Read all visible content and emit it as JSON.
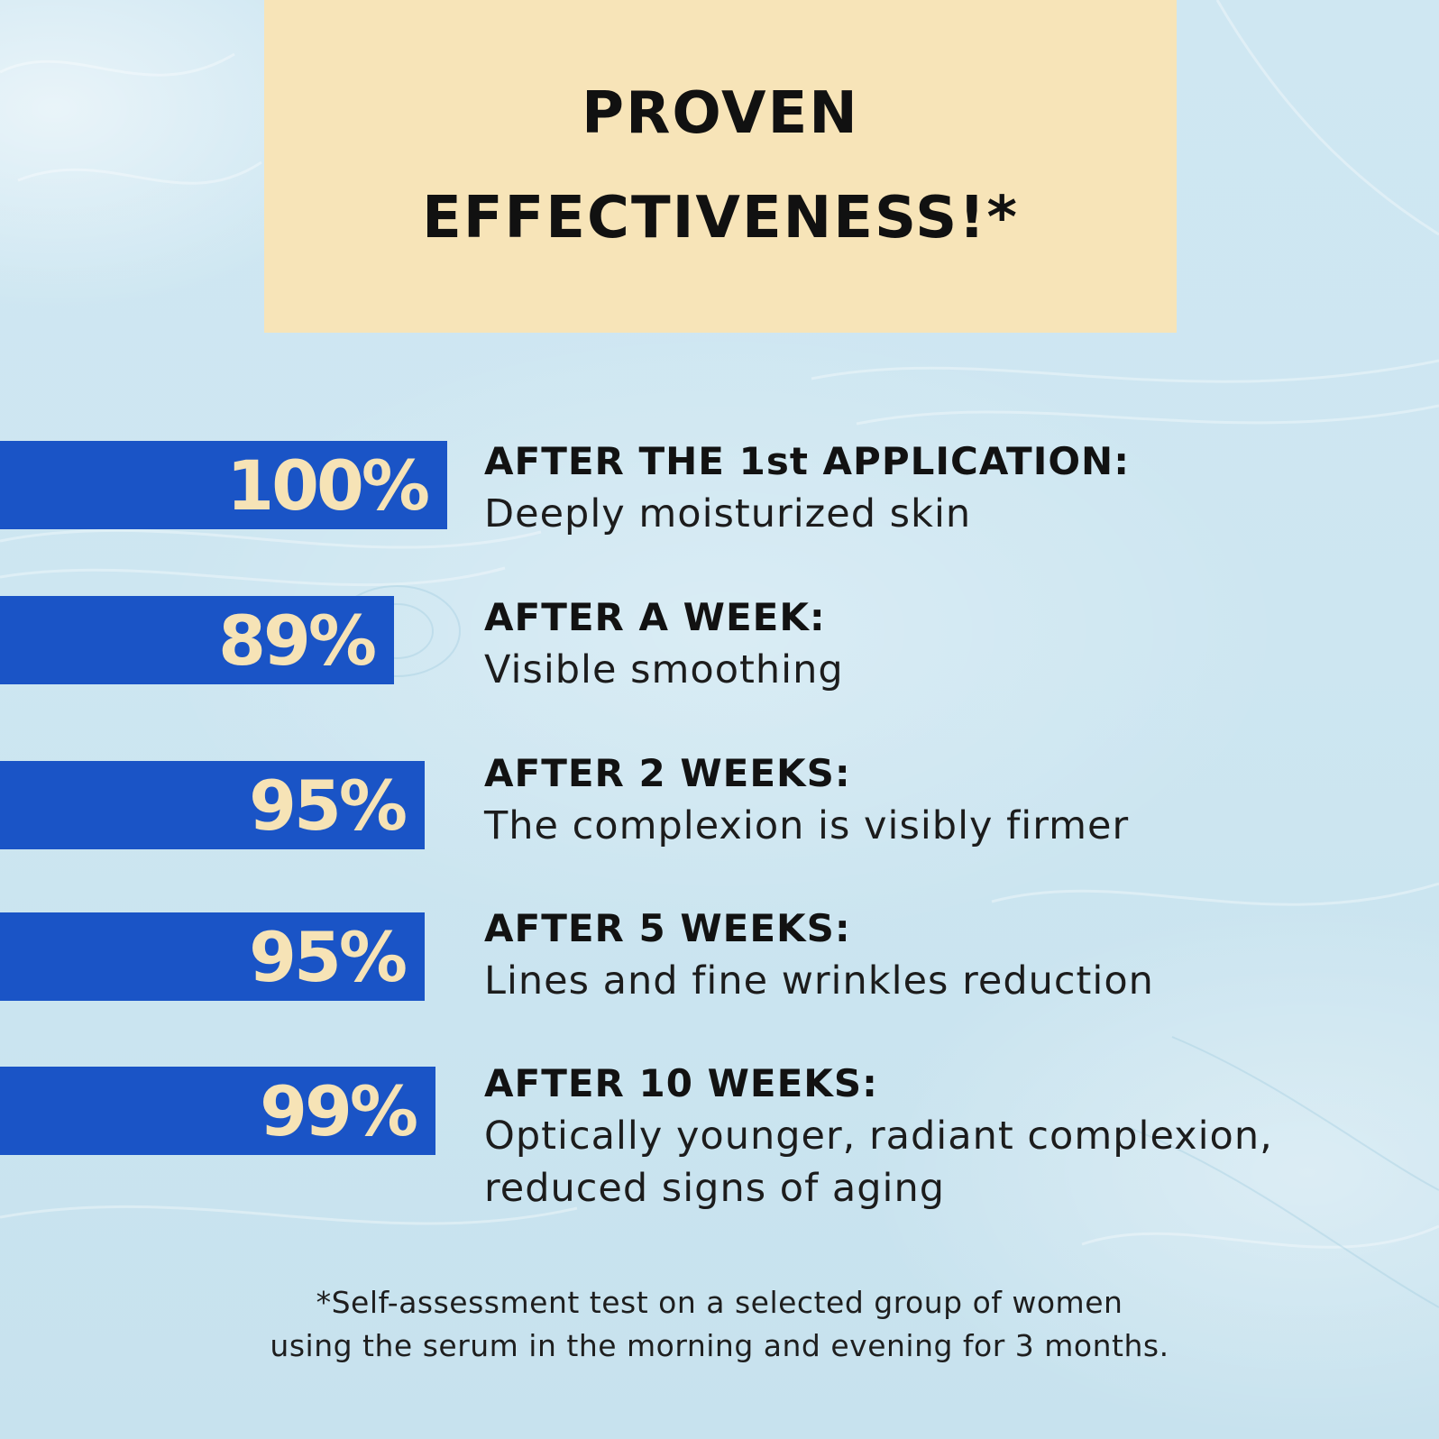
{
  "header": {
    "title_line1": "PROVEN",
    "title_line2": "EFFECTIVENESS!*"
  },
  "stats": [
    {
      "value": "100%",
      "heading": "AFTER THE 1st APPLICATION:",
      "description": "Deeply moisturized skin"
    },
    {
      "value": "89%",
      "heading": "AFTER A WEEK:",
      "description": "Visible smoothing"
    },
    {
      "value": "95%",
      "heading": "AFTER 2 WEEKS:",
      "description": "The complexion is visibly firmer"
    },
    {
      "value": "95%",
      "heading": "AFTER 5 WEEKS:",
      "description": "Lines and fine wrinkles reduction"
    },
    {
      "value": "99%",
      "heading": "AFTER 10 WEEKS:",
      "description_line1": "Optically younger, radiant complexion,",
      "description_line2": "reduced signs of aging"
    }
  ],
  "footnote": {
    "line1": "*Self-assessment test on a selected group of women",
    "line2": "using the serum in the morning and evening for 3 months."
  },
  "colors": {
    "background": "#cde6f1",
    "title_box": "#f7e4b8",
    "bar": "#1a54c6",
    "bar_text": "#f6e3b6",
    "text": "#121212"
  }
}
